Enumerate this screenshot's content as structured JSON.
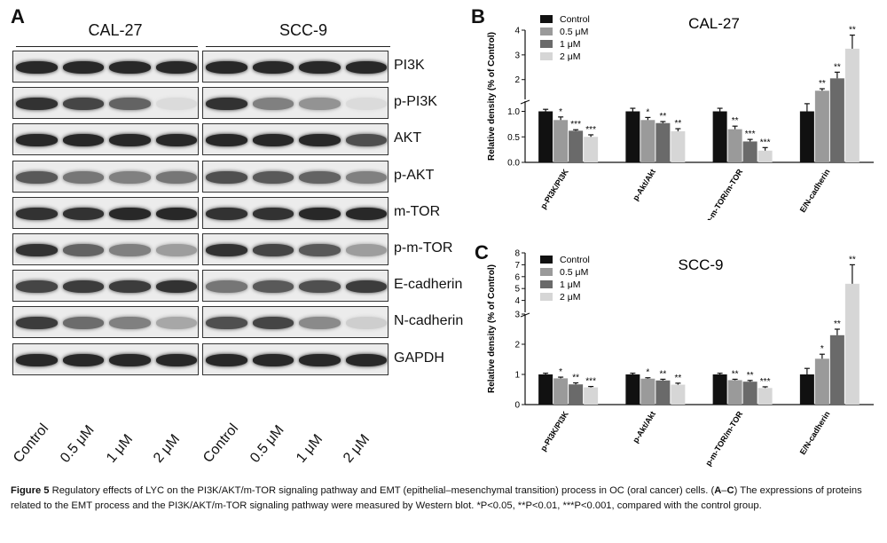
{
  "panelA": {
    "letter": "A",
    "cell_lines": [
      "CAL-27",
      "SCC-9"
    ],
    "proteins": [
      "PI3K",
      "p-PI3K",
      "AKT",
      "p-AKT",
      "m-TOR",
      "p-m-TOR",
      "E-cadherin",
      "N-cadherin",
      "GAPDH"
    ],
    "lanes": [
      "Control",
      "0.5 μM",
      "1 μM",
      "2 μM"
    ],
    "band_intensity": {
      "CAL-27": [
        [
          1.0,
          1.0,
          1.0,
          1.0
        ],
        [
          0.95,
          0.85,
          0.7,
          0.08
        ],
        [
          1.0,
          1.0,
          1.0,
          1.0
        ],
        [
          0.75,
          0.6,
          0.55,
          0.6
        ],
        [
          0.95,
          0.95,
          1.0,
          1.0
        ],
        [
          0.95,
          0.7,
          0.55,
          0.4
        ],
        [
          0.85,
          0.9,
          0.9,
          0.95
        ],
        [
          0.9,
          0.65,
          0.55,
          0.35
        ],
        [
          1.0,
          1.0,
          1.0,
          1.0
        ]
      ],
      "SCC-9": [
        [
          1.0,
          1.0,
          1.0,
          1.0
        ],
        [
          0.95,
          0.55,
          0.45,
          0.08
        ],
        [
          1.0,
          1.0,
          1.0,
          0.8
        ],
        [
          0.8,
          0.75,
          0.7,
          0.55
        ],
        [
          0.95,
          0.95,
          1.0,
          1.0
        ],
        [
          0.95,
          0.85,
          0.75,
          0.4
        ],
        [
          0.6,
          0.75,
          0.8,
          0.9
        ],
        [
          0.8,
          0.85,
          0.5,
          0.15
        ],
        [
          1.0,
          1.0,
          1.0,
          1.0
        ]
      ]
    }
  },
  "panelB": {
    "letter": "B",
    "chart_data": {
      "type": "bar",
      "title": "CAL-27",
      "ylabel": "Relative density (% of Control)",
      "categories": [
        "p-PI3K/PI3K",
        "p-Akt/Akt",
        "p-m-TOR/m-TOR",
        "E/N-cadherin"
      ],
      "series": [
        {
          "name": "Control",
          "color": "#111111",
          "values": [
            1.0,
            1.0,
            1.0,
            1.0
          ],
          "errors": [
            0.04,
            0.06,
            0.06,
            0.15
          ],
          "sig": [
            "",
            "",
            "",
            ""
          ]
        },
        {
          "name": "0.5 μM",
          "color": "#9a9a9a",
          "values": [
            0.83,
            0.83,
            0.65,
            1.55
          ],
          "errors": [
            0.06,
            0.05,
            0.06,
            0.08
          ],
          "sig": [
            "*",
            "*",
            "**",
            "**"
          ]
        },
        {
          "name": "1 μM",
          "color": "#6a6a6a",
          "values": [
            0.62,
            0.77,
            0.41,
            2.05
          ],
          "errors": [
            0.02,
            0.03,
            0.04,
            0.25
          ],
          "sig": [
            "***",
            "**",
            "***",
            "**"
          ]
        },
        {
          "name": "2 μM",
          "color": "#d6d6d6",
          "values": [
            0.5,
            0.61,
            0.23,
            3.25
          ],
          "errors": [
            0.04,
            0.05,
            0.06,
            0.55
          ],
          "sig": [
            "***",
            "**",
            "***",
            "**"
          ]
        }
      ],
      "y_segments": [
        {
          "range": [
            0,
            1.2
          ],
          "ticks": [
            "0.0",
            "0.5",
            "1.0"
          ],
          "tick_values": [
            0,
            0.5,
            1.0
          ]
        },
        {
          "range": [
            1.2,
            4
          ],
          "ticks": [
            "2",
            "3",
            "4"
          ],
          "tick_values": [
            2,
            3,
            4
          ]
        }
      ],
      "legend_position": "top-left"
    }
  },
  "panelC": {
    "letter": "C",
    "chart_data": {
      "type": "bar",
      "title": "SCC-9",
      "ylabel": "Relative density (% of Control)",
      "categories": [
        "p-PI3K/PI3K",
        "p-Akt/Akt",
        "p-m-TOR/m-TOR",
        "E/N-cadherin"
      ],
      "series": [
        {
          "name": "Control",
          "color": "#111111",
          "values": [
            1.0,
            1.0,
            1.0,
            1.0
          ],
          "errors": [
            0.04,
            0.04,
            0.04,
            0.2
          ],
          "sig": [
            "",
            "",
            "",
            ""
          ]
        },
        {
          "name": "0.5 μM",
          "color": "#9a9a9a",
          "values": [
            0.87,
            0.86,
            0.81,
            1.52
          ],
          "errors": [
            0.04,
            0.03,
            0.03,
            0.15
          ],
          "sig": [
            "*",
            "*",
            "**",
            "*"
          ]
        },
        {
          "name": "1 μM",
          "color": "#6a6a6a",
          "values": [
            0.67,
            0.8,
            0.76,
            2.3
          ],
          "errors": [
            0.05,
            0.04,
            0.04,
            0.2
          ],
          "sig": [
            "**",
            "**",
            "**",
            "**"
          ]
        },
        {
          "name": "2 μM",
          "color": "#d6d6d6",
          "values": [
            0.57,
            0.66,
            0.55,
            5.4
          ],
          "errors": [
            0.03,
            0.05,
            0.04,
            1.6
          ],
          "sig": [
            "***",
            "**",
            "***",
            "**"
          ]
        }
      ],
      "y_segments": [
        {
          "range": [
            0,
            3
          ],
          "ticks": [
            "0",
            "1",
            "2",
            "3"
          ],
          "tick_values": [
            0,
            1,
            2,
            3
          ]
        },
        {
          "range": [
            3,
            8
          ],
          "ticks": [
            "4",
            "5",
            "6",
            "7",
            "8"
          ],
          "tick_values": [
            4,
            5,
            6,
            7,
            8
          ]
        }
      ],
      "legend_position": "top-left"
    }
  },
  "caption": {
    "label": "Figure 5",
    "text_1": "Regulatory effects of LYC on the PI3K/AKT/m-TOR signaling pathway and EMT (epithelial–mesenchymal transition) process in OC (oral cancer) cells. (",
    "range": "A",
    "dash": "–",
    "range_end": "C",
    "text_2": ") The expressions of proteins related to the EMT process and the PI3K/AKT/m-TOR signaling pathway were measured by Western blot. *P<0.05, **P<0.01, ***P<0.001, compared with the control group."
  }
}
